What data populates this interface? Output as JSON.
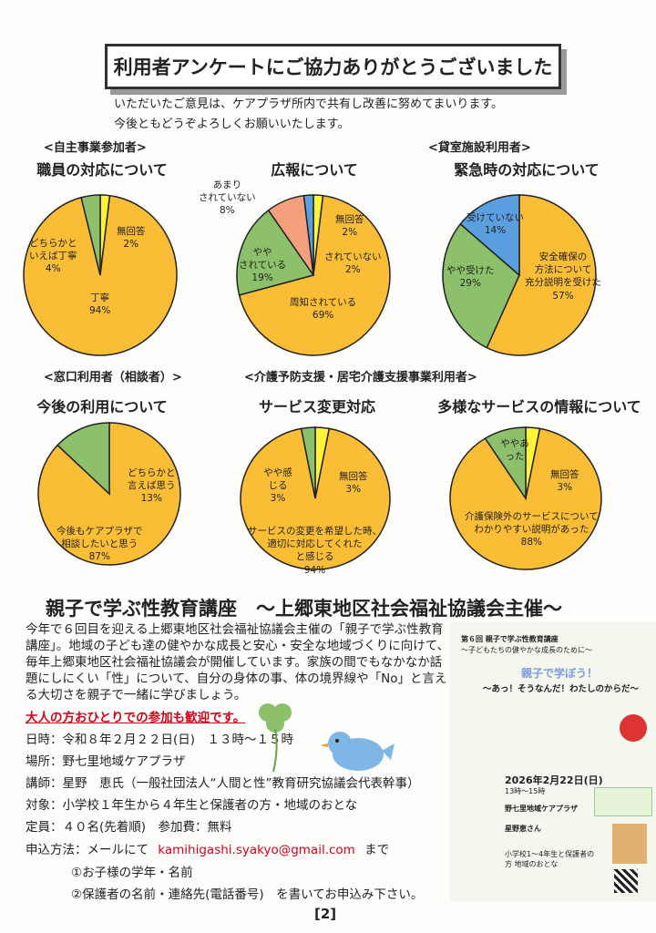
{
  "header": {
    "title": "利用者アンケートにご協力ありがとうございました",
    "intro": [
      "いただいたご意見は、ケアプラザ所内で共有し改善に努めてまいります。",
      "今後ともどうぞよろしくお願いいたします。"
    ]
  },
  "sections": {
    "s1": "<自主事業参加者>",
    "s3": "<貸室施設利用者>",
    "s4": "<窓口利用者（相談者）>",
    "s5": "<介護予防支援・居宅介護支援事業利用者>"
  },
  "colors": {
    "orange": "#f9bd36",
    "green": "#8cc06a",
    "yellow": "#fff23a",
    "blue": "#5aa0e0",
    "salmon": "#f4a07c"
  },
  "chart_data": [
    {
      "type": "pie",
      "title": "職員の対応について",
      "slices": [
        {
          "label": "無回答",
          "value": 2,
          "color": "#fff23a"
        },
        {
          "label": "丁寧",
          "value": 94,
          "color": "#f9bd36"
        },
        {
          "label": "どちらかといえば丁寧",
          "value": 4,
          "color": "#8cc06a"
        }
      ]
    },
    {
      "type": "pie",
      "title": "広報について",
      "slices": [
        {
          "label": "無回答",
          "value": 2,
          "color": "#fff23a"
        },
        {
          "label": "周知されている",
          "value": 69,
          "color": "#f9bd36"
        },
        {
          "label": "ややされている",
          "value": 19,
          "color": "#8cc06a"
        },
        {
          "label": "あまりされていない",
          "value": 8,
          "color": "#f4a07c"
        },
        {
          "label": "されていない",
          "value": 2,
          "color": "#5aa0e0"
        }
      ]
    },
    {
      "type": "pie",
      "title": "緊急時の対応について",
      "slices": [
        {
          "label": "安全確保の方法について充分説明を受けた",
          "value": 57,
          "color": "#f9bd36"
        },
        {
          "label": "やや受けた",
          "value": 29,
          "color": "#8cc06a"
        },
        {
          "label": "受けていない",
          "value": 14,
          "color": "#5aa0e0"
        }
      ]
    },
    {
      "type": "pie",
      "title": "今後の利用について",
      "slices": [
        {
          "label": "今後もケアプラザで相談したいと思う",
          "value": 87,
          "color": "#f9bd36"
        },
        {
          "label": "どちらかと言えば思う",
          "value": 13,
          "color": "#8cc06a"
        }
      ]
    },
    {
      "type": "pie",
      "title": "サービス変更対応",
      "slices": [
        {
          "label": "無回答",
          "value": 3,
          "color": "#fff23a"
        },
        {
          "label": "サービスの変更を希望した時、適切に対応してくれたと感じる",
          "value": 94,
          "color": "#f9bd36"
        },
        {
          "label": "やや感じる",
          "value": 3,
          "color": "#8cc06a"
        }
      ]
    },
    {
      "type": "pie",
      "title": "多様なサービスの情報について",
      "slices": [
        {
          "label": "無回答",
          "value": 3,
          "color": "#fff23a"
        },
        {
          "label": "介護保険外のサービスについてわかりやすい説明があった",
          "value": 88,
          "color": "#f9bd36"
        },
        {
          "label": "ややあった",
          "value": 9,
          "color": "#8cc06a"
        }
      ]
    }
  ],
  "labels": {
    "c1": {
      "a": "無回答",
      "ap": "2%",
      "b": "どちらかと",
      "b2": "いえば丁寧",
      "bp": "4%",
      "c": "丁寧",
      "cp": "94%"
    },
    "c2": {
      "a": "無回答",
      "ap": "2%",
      "b": "されていない",
      "bp": "2%",
      "c": "あまり",
      "c2": "されていない",
      "cp": "8%",
      "d": "やや",
      "d2": "されている",
      "dp": "19%",
      "e": "周知されている",
      "ep": "69%"
    },
    "c3": {
      "a": "受けていない",
      "ap": "14%",
      "b": "やや受けた",
      "bp": "29%",
      "c": "安全確保の",
      "c2": "方法について",
      "c3": "充分説明を受けた",
      "cp": "57%"
    },
    "c4": {
      "a": "どちらかと",
      "a2": "言えば思う",
      "ap": "13%",
      "b": "今後もケアプラザで",
      "b2": "相談したいと思う",
      "bp": "87%"
    },
    "c5": {
      "a": "やや",
      "a2": "感じる",
      "ap": "3%",
      "b": "無回答",
      "bp": "3%",
      "c": "サービスの変更を希望した時、",
      "c2": "適切に対応してくれた",
      "c3": "と感じる",
      "cp": "94%"
    },
    "c6": {
      "a": "やや",
      "a2": "あった",
      "b": "無回答",
      "bp": "3%",
      "c": "介護保険外のサービスについて",
      "c2": "わかりやすい説明があった",
      "cp": "88%"
    }
  },
  "seminar": {
    "title": "親子で学ぶ性教育講座　～上郷東地区社会福祉協議会主催～",
    "body": "今年で６回目を迎える上郷東地区社会福祉協議会主催の「親子で学ぶ性教育講座」。地域の子ども達の健やかな成長と安心・安全な地域づくりに向けて、毎年上郷東地区社会福祉協議会が開催しています。家族の間でもなかなか話題にしにくい「性」について、自分の身体の事、体の境界線や「No」と言える大切さを親子で一緒に学びましょう。",
    "welcome": "大人の方おひとりでの参加も歓迎です。",
    "date": "日時：令和８年２月２２日(日)　１３時～１５時",
    "place": "場所：野七里地域ケアプラザ",
    "lecturer": "講師：星野　恵氏（一般社団法人“人間と性”教育研究協議会代表幹事）",
    "target": "対象：小学校１年生から４年生と保護者の方・地域のおとな",
    "capacity": "定員：４０名(先着順)　参加費：無料",
    "apply_prefix": "申込方法：メールにて",
    "email": "kamihigashi.syakyo@gmail.com",
    "apply_suffix": "まで",
    "item1": "①お子様の学年・名前",
    "item2": "②保護者の名前・連絡先(電話番号)　を書いてお申込み下さい。"
  },
  "flyer": {
    "head": "第６回 親子で学ぶ性教育講座",
    "sub": "～子どもたちの健やかな成長のために～",
    "title1": "親子で学ぼう！",
    "title2": "～あっ！そうなんだ！わたしのからだ～",
    "date": "2026年2月22日(日)",
    "time": "13時～15時",
    "place": "野七里地域ケアプラザ",
    "lecturer": "星野恵さん",
    "target": "小学校1～4年生と保護者の方 地域のおとな"
  },
  "page_number": "2"
}
